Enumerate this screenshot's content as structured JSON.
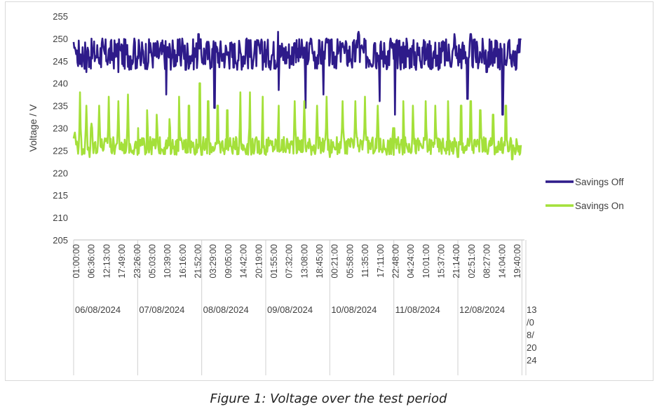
{
  "caption": "Figure 1: Voltage over the test period",
  "chart_data": {
    "type": "line",
    "title": "",
    "xlabel": "",
    "ylabel": "Voltage / V",
    "ylim": [
      205,
      255
    ],
    "y_ticks": [
      205,
      210,
      215,
      220,
      225,
      230,
      235,
      240,
      245,
      250,
      255
    ],
    "grid": false,
    "legend_position": "right",
    "time_ticks": [
      "01:00:00",
      "06:36:00",
      "12:13:00",
      "17:49:00",
      "23:26:00",
      "05:03:00",
      "10:39:00",
      "16:16:00",
      "21:52:00",
      "03:29:00",
      "09:05:00",
      "14:42:00",
      "20:19:00",
      "01:55:00",
      "07:32:00",
      "13:08:00",
      "18:45:00",
      "00:21:00",
      "05:58:00",
      "11:35:00",
      "17:11:00",
      "22:48:00",
      "04:24:00",
      "10:01:00",
      "15:37:00",
      "21:14:00",
      "02:51:00",
      "08:27:00",
      "14:04:00",
      "19:40:00"
    ],
    "date_labels": [
      "06/08/2024",
      "07/08/2024",
      "08/08/2024",
      "09/08/2024",
      "10/08/2024",
      "11/08/2024",
      "12/08/2024",
      "13/08/2024"
    ],
    "x_range_days": [
      0,
      7.04
    ],
    "series": [
      {
        "name": "Savings Off",
        "color": "#2e1b8a",
        "baseline": 246.5,
        "peaks": [
          [
            0.02,
            248
          ],
          [
            0.2,
            247
          ],
          [
            0.45,
            250
          ],
          [
            0.7,
            250
          ],
          [
            0.95,
            250
          ],
          [
            1.2,
            249
          ],
          [
            1.45,
            248
          ],
          [
            1.7,
            250
          ],
          [
            1.95,
            251
          ],
          [
            2.2,
            247
          ],
          [
            2.45,
            249
          ],
          [
            2.7,
            250
          ],
          [
            2.95,
            250
          ],
          [
            3.2,
            252.5
          ],
          [
            3.45,
            249
          ],
          [
            3.7,
            250
          ],
          [
            3.95,
            250
          ],
          [
            4.2,
            249
          ],
          [
            4.45,
            251.5
          ],
          [
            4.7,
            249
          ],
          [
            4.95,
            250
          ],
          [
            5.2,
            250
          ],
          [
            5.45,
            248
          ],
          [
            5.7,
            250
          ],
          [
            5.95,
            251
          ],
          [
            6.2,
            251
          ],
          [
            6.45,
            249
          ],
          [
            6.7,
            249
          ],
          [
            6.98,
            250
          ]
        ],
        "dips": [
          [
            0.2,
            242.5
          ],
          [
            0.7,
            242.5
          ],
          [
            1.05,
            244
          ],
          [
            1.45,
            237.5
          ],
          [
            1.75,
            243
          ],
          [
            2.2,
            234.5
          ],
          [
            2.5,
            243.5
          ],
          [
            2.95,
            243
          ],
          [
            3.2,
            238.5
          ],
          [
            3.62,
            234.5
          ],
          [
            3.9,
            237.5
          ],
          [
            4.35,
            243.5
          ],
          [
            4.78,
            236
          ],
          [
            5.02,
            233
          ],
          [
            5.35,
            243
          ],
          [
            5.7,
            243
          ],
          [
            6.15,
            236.5
          ],
          [
            6.45,
            242.5
          ],
          [
            6.7,
            233
          ],
          [
            6.9,
            243
          ]
        ]
      },
      {
        "name": "Savings On",
        "color": "#a4e03a",
        "baseline": 226,
        "peaks": [
          [
            0.02,
            229
          ],
          [
            0.1,
            238
          ],
          [
            0.2,
            235
          ],
          [
            0.28,
            231
          ],
          [
            0.4,
            235
          ],
          [
            0.55,
            237
          ],
          [
            0.7,
            236
          ],
          [
            0.85,
            237.5
          ],
          [
            1.0,
            237
          ],
          [
            1.15,
            234
          ],
          [
            1.3,
            233
          ],
          [
            1.5,
            232
          ],
          [
            1.65,
            237
          ],
          [
            1.8,
            235
          ],
          [
            1.97,
            240
          ],
          [
            2.1,
            236
          ],
          [
            2.25,
            235
          ],
          [
            2.4,
            234
          ],
          [
            2.6,
            238
          ],
          [
            2.75,
            238
          ],
          [
            2.95,
            237
          ],
          [
            3.2,
            235
          ],
          [
            3.45,
            236
          ],
          [
            3.6,
            236
          ],
          [
            3.8,
            235
          ],
          [
            3.95,
            237
          ],
          [
            4.2,
            236
          ],
          [
            4.4,
            236
          ],
          [
            4.55,
            237
          ],
          [
            4.75,
            235
          ],
          [
            5.0,
            240
          ],
          [
            5.15,
            236
          ],
          [
            5.3,
            235
          ],
          [
            5.5,
            236
          ],
          [
            5.65,
            235
          ],
          [
            5.85,
            236
          ],
          [
            6.05,
            235
          ],
          [
            6.2,
            236
          ],
          [
            6.35,
            234
          ],
          [
            6.55,
            233
          ],
          [
            6.75,
            235
          ],
          [
            6.95,
            226
          ]
        ],
        "dips": [
          [
            0.25,
            223.5
          ],
          [
            1.0,
            224
          ],
          [
            2.0,
            224
          ],
          [
            3.0,
            224
          ],
          [
            4.0,
            223.5
          ],
          [
            5.0,
            224
          ],
          [
            6.0,
            223.5
          ],
          [
            6.85,
            223
          ]
        ]
      }
    ]
  }
}
